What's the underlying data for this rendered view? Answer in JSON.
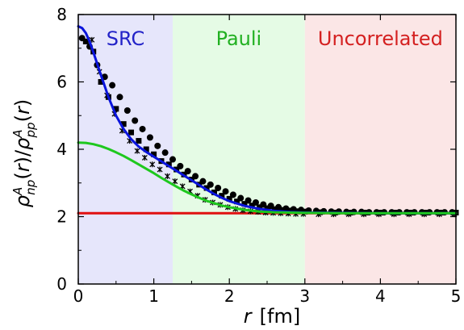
{
  "chart_data": {
    "type": "line",
    "x_axis": {
      "label_var": "r",
      "label_unit": "[fm]",
      "range": [
        0,
        5
      ],
      "ticks": [
        "0",
        "1",
        "2",
        "3",
        "4",
        "5"
      ]
    },
    "y_axis": {
      "label": "ρ^A_np(r)/ρ^A_pp(r)",
      "label_parts": {
        "rho": "ρ",
        "sup_num": "A",
        "sub_num": "np",
        "open_num": "(",
        "var_num": "r",
        "close_num": ")",
        "slash": "/",
        "rho2": "ρ",
        "sup_den": "A",
        "sub_den": "pp",
        "open_den": "(",
        "var_den": "r",
        "close_den": ")"
      },
      "range": [
        0,
        8
      ],
      "ticks": [
        "0",
        "2",
        "4",
        "6",
        "8"
      ]
    },
    "regions": [
      {
        "label": "SRC",
        "x_start": 0,
        "x_end": 1.25,
        "fill": "#e6e6fb",
        "text_color": "#2323c8"
      },
      {
        "label": "Pauli",
        "x_start": 1.25,
        "x_end": 3.0,
        "fill": "#e5fbe5",
        "text_color": "#21b021"
      },
      {
        "label": "Uncorrelated",
        "x_start": 3.0,
        "x_end": 5.0,
        "fill": "#fbe6e6",
        "text_color": "#d42020"
      }
    ],
    "series": [
      {
        "kind": "line",
        "color": "#0a14dc",
        "x": [
          0.0,
          0.05,
          0.1,
          0.15,
          0.2,
          0.3,
          0.4,
          0.5,
          0.6,
          0.7,
          0.8,
          0.9,
          1.0,
          1.1,
          1.2,
          1.3,
          1.4,
          1.5,
          1.6,
          1.7,
          1.8,
          1.9,
          2.0,
          2.2,
          2.4,
          2.6,
          2.8,
          3.0,
          3.5,
          4.0,
          4.5,
          5.0
        ],
        "y": [
          7.65,
          7.6,
          7.45,
          7.2,
          6.88,
          6.2,
          5.55,
          5.0,
          4.6,
          4.3,
          4.08,
          3.92,
          3.78,
          3.64,
          3.5,
          3.36,
          3.22,
          3.08,
          2.94,
          2.8,
          2.67,
          2.56,
          2.46,
          2.32,
          2.23,
          2.17,
          2.14,
          2.12,
          2.11,
          2.1,
          2.1,
          2.1
        ]
      },
      {
        "kind": "line",
        "color": "#1ec81e",
        "x": [
          0.0,
          0.1,
          0.2,
          0.3,
          0.4,
          0.5,
          0.6,
          0.7,
          0.8,
          0.9,
          1.0,
          1.1,
          1.2,
          1.3,
          1.4,
          1.5,
          1.6,
          1.7,
          1.8,
          1.9,
          2.0,
          2.2,
          2.4,
          2.6,
          2.8,
          3.0,
          3.5,
          4.0,
          5.0
        ],
        "y": [
          4.2,
          4.19,
          4.15,
          4.09,
          4.01,
          3.91,
          3.8,
          3.68,
          3.55,
          3.42,
          3.29,
          3.15,
          3.02,
          2.89,
          2.77,
          2.66,
          2.56,
          2.47,
          2.4,
          2.33,
          2.28,
          2.2,
          2.15,
          2.13,
          2.12,
          2.11,
          2.1,
          2.1,
          2.1
        ]
      },
      {
        "kind": "line",
        "color": "#e01010",
        "x": [
          0.0,
          5.0
        ],
        "y": [
          2.1,
          2.1
        ]
      },
      {
        "kind": "scatter",
        "marker": "circle",
        "color": "#000000",
        "x": [
          0.05,
          0.15,
          0.25,
          0.35,
          0.45,
          0.55,
          0.65,
          0.75,
          0.85,
          0.95,
          1.05,
          1.15,
          1.25,
          1.35,
          1.45,
          1.55,
          1.65,
          1.75,
          1.85,
          1.95,
          2.05,
          2.15,
          2.25,
          2.35,
          2.45,
          2.55,
          2.65,
          2.75,
          2.85,
          2.95,
          3.05,
          3.15,
          3.25,
          3.35,
          3.45,
          3.55,
          3.65,
          3.75,
          3.85,
          3.95,
          4.05,
          4.15,
          4.25,
          4.35,
          4.45,
          4.55,
          4.65,
          4.75,
          4.85,
          4.95
        ],
        "y": [
          7.3,
          7.05,
          6.5,
          6.15,
          5.9,
          5.55,
          5.15,
          4.85,
          4.6,
          4.35,
          4.1,
          3.9,
          3.7,
          3.5,
          3.35,
          3.2,
          3.05,
          2.95,
          2.85,
          2.75,
          2.65,
          2.55,
          2.48,
          2.42,
          2.36,
          2.32,
          2.28,
          2.24,
          2.22,
          2.2,
          2.18,
          2.17,
          2.16,
          2.15,
          2.15,
          2.14,
          2.14,
          2.14,
          2.13,
          2.13,
          2.13,
          2.13,
          2.13,
          2.13,
          2.13,
          2.13,
          2.13,
          2.13,
          2.13,
          2.13
        ]
      },
      {
        "kind": "scatter",
        "marker": "square",
        "color": "#000000",
        "x": [
          0.1,
          0.2,
          0.3,
          0.4,
          0.5,
          0.6,
          0.7,
          0.8,
          0.9,
          1.0,
          1.1,
          1.2,
          1.3,
          1.4,
          1.5,
          1.6,
          1.7,
          1.8,
          1.9,
          2.0,
          2.1,
          2.2,
          2.3,
          2.4,
          2.5,
          2.6,
          2.7,
          2.8,
          2.9,
          3.0,
          3.2,
          3.4,
          3.6,
          3.8,
          4.0,
          4.2,
          4.4,
          4.6,
          4.8,
          5.0
        ],
        "y": [
          7.2,
          6.9,
          6.0,
          5.55,
          5.2,
          4.75,
          4.5,
          4.25,
          4.0,
          3.85,
          3.65,
          3.55,
          3.4,
          3.25,
          3.1,
          2.95,
          2.85,
          2.72,
          2.62,
          2.53,
          2.45,
          2.38,
          2.33,
          2.28,
          2.25,
          2.22,
          2.2,
          2.18,
          2.16,
          2.15,
          2.13,
          2.12,
          2.12,
          2.12,
          2.12,
          2.12,
          2.12,
          2.12,
          2.12,
          2.12
        ]
      },
      {
        "kind": "scatter",
        "marker": "star",
        "color": "#000000",
        "x": [
          0.18,
          0.28,
          0.38,
          0.48,
          0.58,
          0.68,
          0.78,
          0.88,
          0.98,
          1.08,
          1.18,
          1.28,
          1.38,
          1.48,
          1.58,
          1.68,
          1.78,
          1.88,
          1.98,
          2.08,
          2.18,
          2.28,
          2.38,
          2.48,
          2.58,
          2.68,
          2.78,
          2.88,
          2.98,
          3.18,
          3.38,
          3.58,
          3.78,
          3.98,
          4.18,
          4.38,
          4.58,
          4.78,
          4.98
        ],
        "y": [
          7.25,
          6.3,
          5.6,
          5.05,
          4.55,
          4.25,
          3.95,
          3.75,
          3.55,
          3.4,
          3.2,
          3.05,
          2.9,
          2.75,
          2.62,
          2.5,
          2.42,
          2.35,
          2.28,
          2.23,
          2.19,
          2.16,
          2.14,
          2.12,
          2.11,
          2.1,
          2.09,
          2.08,
          2.08,
          2.07,
          2.07,
          2.07,
          2.07,
          2.07,
          2.07,
          2.07,
          2.07,
          2.07,
          2.07
        ]
      }
    ]
  }
}
